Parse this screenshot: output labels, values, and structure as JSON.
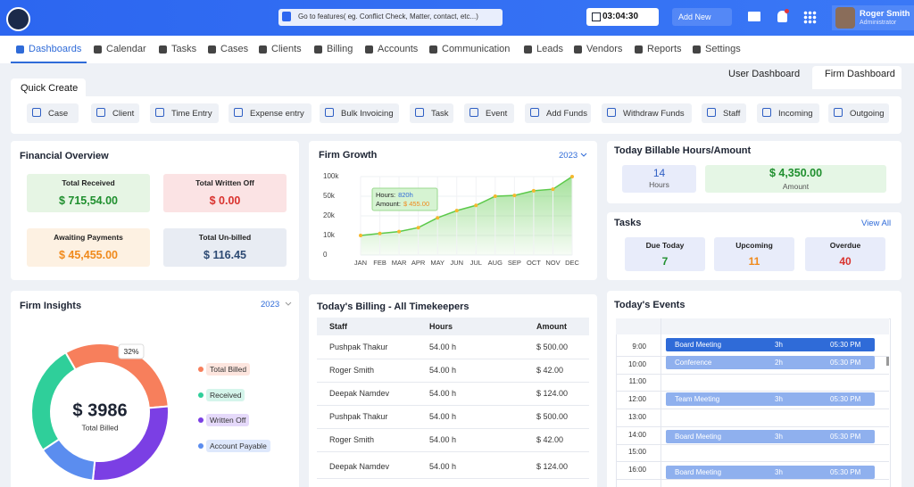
{
  "header": {
    "search_placeholder": "Go to features( eg. Conflict Check, Matter, contact, etc...)",
    "timer": "03:04:30",
    "add_new": "Add New",
    "user_name": "Roger Smith",
    "user_role": "Administrator"
  },
  "nav": [
    "Dashboards",
    "Calendar",
    "Tasks",
    "Cases",
    "Clients",
    "Billing",
    "Accounts",
    "Communication",
    "Leads",
    "Vendors",
    "Reports",
    "Settings"
  ],
  "tabs": [
    "User Dashboard",
    "Firm Dashboard"
  ],
  "quick_create": {
    "title": "Quick Create",
    "items": [
      "Case",
      "Client",
      "Time Entry",
      "Expense entry",
      "Bulk Invoicing",
      "Task",
      "Event",
      "Add Funds",
      "Withdraw Funds",
      "Staff",
      "Incoming",
      "Outgoing"
    ]
  },
  "financial_overview": {
    "title": "Financial Overview",
    "cards": [
      {
        "label": "Total Received",
        "value": "$ 715,54.00"
      },
      {
        "label": "Total Written Off",
        "value": "$ 0.00"
      },
      {
        "label": "Awaiting Payments",
        "value": "$ 45,455.00"
      },
      {
        "label": "Total Un-billed",
        "value": "$ 116.45"
      }
    ]
  },
  "billable": {
    "title": "Today Billable Hours/Amount",
    "hours": "14",
    "hours_label": "Hours",
    "amount": "$ 4,350.00",
    "amount_label": "Amount"
  },
  "tasks": {
    "title": "Tasks",
    "view_all": "View All",
    "items": [
      {
        "label": "Due Today",
        "count": 7
      },
      {
        "label": "Upcoming",
        "count": 11
      },
      {
        "label": "Overdue",
        "count": 40
      }
    ]
  },
  "billing": {
    "title": "Today's Billing - All Timekeepers",
    "columns": [
      "Staff",
      "Hours",
      "Amount"
    ],
    "rows": [
      [
        "Pushpak Thakur",
        "54.00 h",
        "$ 500.00"
      ],
      [
        "Roger Smith",
        "54.00 h",
        "$ 42.00"
      ],
      [
        "Deepak Namdev",
        "54.00 h",
        "$ 124.00"
      ],
      [
        "Pushpak Thakur",
        "54.00 h",
        "$ 500.00"
      ],
      [
        "Roger Smith",
        "54.00 h",
        "$ 42.00"
      ],
      [
        "Deepak Namdev",
        "54.00 h",
        "$ 124.00"
      ]
    ]
  },
  "events": {
    "title": "Today's Events",
    "times": [
      "9:00",
      "10:00",
      "11:00",
      "12:00",
      "13:00",
      "14:00",
      "15:00",
      "16:00"
    ],
    "items": [
      {
        "name": "Board Meeting",
        "duration": "3h",
        "time": "05:30 PM"
      },
      {
        "name": "Conference",
        "duration": "2h",
        "time": "05:30 PM"
      },
      {
        "name": "Team Meeting",
        "duration": "3h",
        "time": "05:30 PM"
      },
      {
        "name": "Board Meeting",
        "duration": "3h",
        "time": "05:30 PM"
      },
      {
        "name": "Board Meeting",
        "duration": "3h",
        "time": "05:30 PM"
      }
    ]
  },
  "chart_data": [
    {
      "type": "line",
      "title": "Firm Growth",
      "filter": "2023",
      "categories": [
        "JAN",
        "FEB",
        "MAR",
        "APR",
        "MAY",
        "JUN",
        "JUL",
        "AUG",
        "SEP",
        "OCT",
        "NOV",
        "DEC"
      ],
      "values": [
        10000,
        11000,
        12000,
        14000,
        19000,
        28000,
        36000,
        50000,
        52000,
        64000,
        68000,
        100000
      ],
      "color": "#5cc94a",
      "point_color": "#f5b82e",
      "ylim": [
        0,
        100000
      ],
      "yticks": [
        0,
        {
          "value": 10000,
          "label": "10k"
        },
        {
          "value": 20000,
          "label": "20k"
        },
        {
          "value": 50000,
          "label": "50k"
        },
        {
          "value": 100000,
          "label": "100k"
        }
      ],
      "tooltip": {
        "hours_label": "Hours:",
        "hours": "820h",
        "amount_label": "Amount:",
        "amount": "$ 455.00"
      }
    },
    {
      "type": "donut",
      "title": "Firm Insights",
      "filter": "2023",
      "categories": [
        "Total Billed",
        "Received",
        "Written Off",
        "Account Payable"
      ],
      "values": [
        32,
        26,
        28,
        14
      ],
      "value_labels": [
        "32%",
        null,
        null,
        null
      ],
      "colors": [
        "#f77f5c",
        "#2fcf9a",
        "#7b3fe4",
        "#5b8def"
      ],
      "center_value": "$ 3986",
      "center_label": "Total Billed"
    }
  ]
}
